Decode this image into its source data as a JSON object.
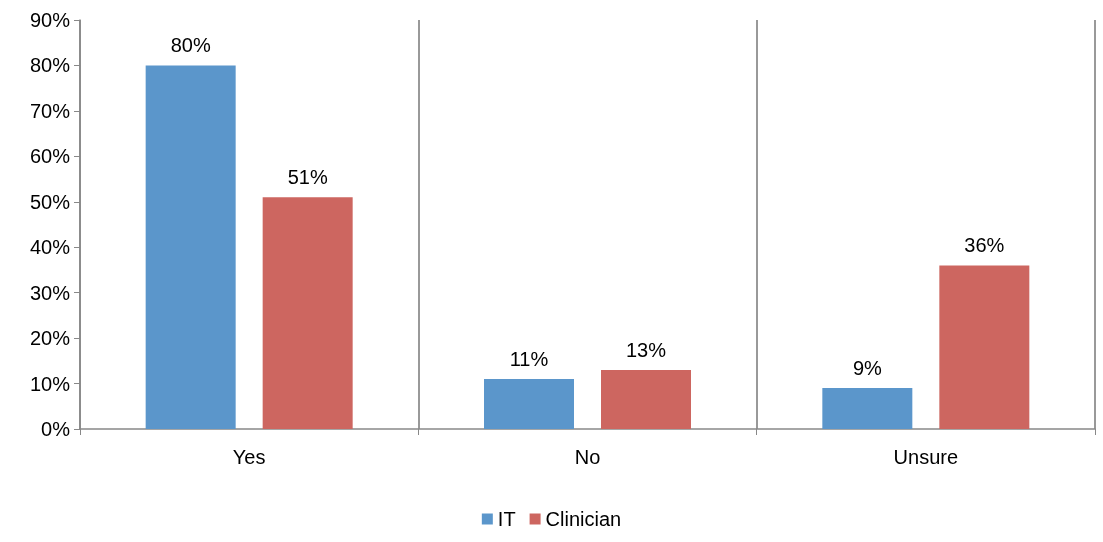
{
  "chart_data": {
    "type": "bar",
    "categories": [
      "Yes",
      "No",
      "Unsure"
    ],
    "series": [
      {
        "name": "IT",
        "color": "#5b96cb",
        "values": [
          80,
          11,
          9
        ],
        "value_labels": [
          "80%",
          "11%",
          "9%"
        ]
      },
      {
        "name": "Clinician",
        "color": "#cd6660",
        "values": [
          51,
          13,
          36
        ],
        "value_labels": [
          "51%",
          "13%",
          "36%"
        ]
      }
    ],
    "ylim": [
      0,
      90
    ],
    "yticks": [
      {
        "value": 0,
        "label": "0%"
      },
      {
        "value": 10,
        "label": "10%"
      },
      {
        "value": 20,
        "label": "20%"
      },
      {
        "value": 30,
        "label": "30%"
      },
      {
        "value": 40,
        "label": "40%"
      },
      {
        "value": 50,
        "label": "50%"
      },
      {
        "value": 60,
        "label": "60%"
      },
      {
        "value": 70,
        "label": "70%"
      },
      {
        "value": 80,
        "label": "80%"
      },
      {
        "value": 90,
        "label": "90%"
      }
    ],
    "grid": "x",
    "legend": "bottom"
  }
}
